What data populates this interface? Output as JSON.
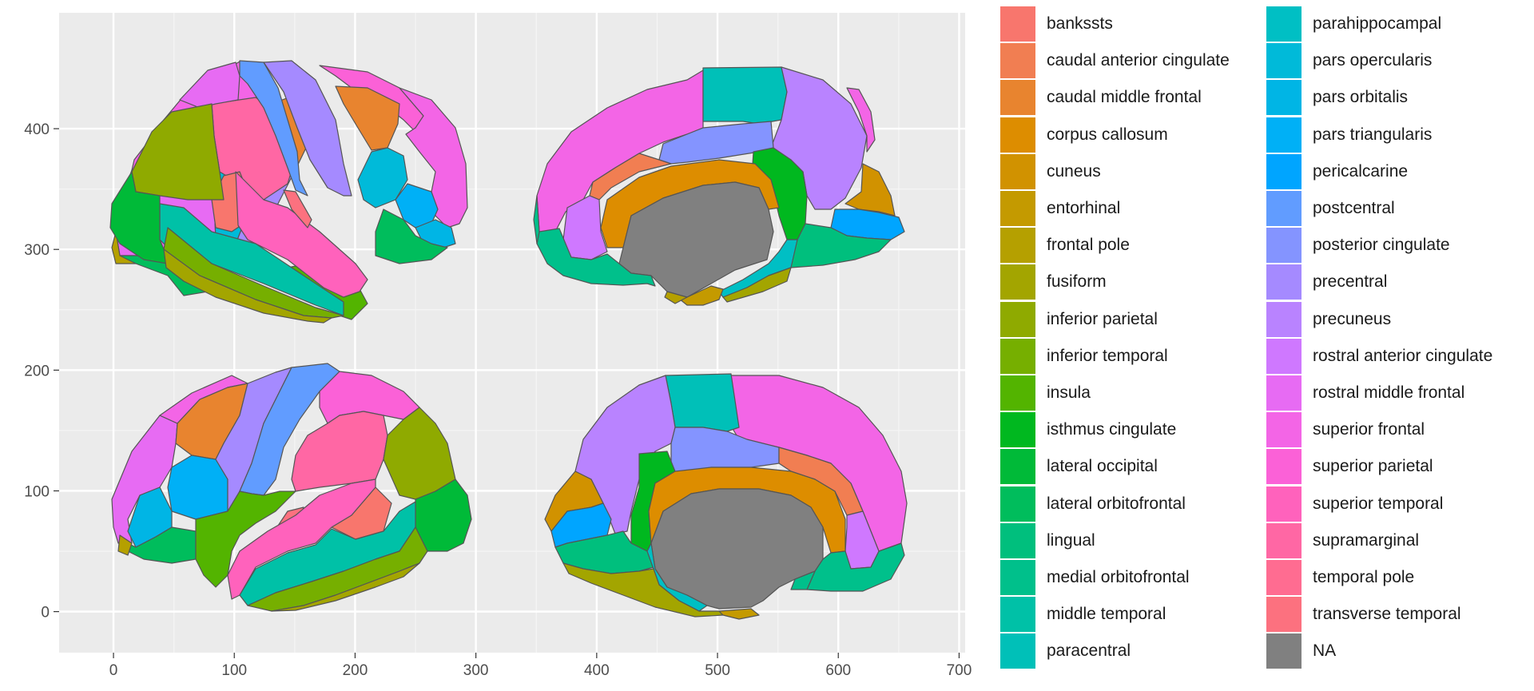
{
  "chart_data": {
    "type": "map",
    "title": "",
    "xlabel": "",
    "ylabel": "",
    "xlim": [
      -45,
      705
    ],
    "ylim": [
      -34,
      496
    ],
    "x_ticks": [
      0,
      100,
      200,
      300,
      400,
      500,
      600,
      700
    ],
    "x_tick_labels": [
      "0",
      "100",
      "200",
      "300",
      "400",
      "500",
      "600",
      "700"
    ],
    "y_ticks": [
      0,
      100,
      200,
      300,
      400
    ],
    "y_tick_labels": [
      "0",
      "100",
      "200",
      "300",
      "400"
    ],
    "grid": true,
    "legend_position": "right",
    "regions": [
      {
        "name": "bankssts",
        "color": "#F8766D"
      },
      {
        "name": "caudal anterior cingulate",
        "color": "#F17E52"
      },
      {
        "name": "caudal middle frontal",
        "color": "#E8842F"
      },
      {
        "name": "corpus callosum",
        "color": "#DD8D00"
      },
      {
        "name": "cuneus",
        "color": "#D19200"
      },
      {
        "name": "entorhinal",
        "color": "#C49A00"
      },
      {
        "name": "frontal pole",
        "color": "#B5A000"
      },
      {
        "name": "fusiform",
        "color": "#A3A500"
      },
      {
        "name": "inferior parietal",
        "color": "#8FAA00"
      },
      {
        "name": "inferior temporal",
        "color": "#76AF00"
      },
      {
        "name": "insula",
        "color": "#53B400"
      },
      {
        "name": "isthmus cingulate",
        "color": "#00B81F"
      },
      {
        "name": "lateral occipital",
        "color": "#00BA38"
      },
      {
        "name": "lateral orbitofrontal",
        "color": "#00BD5C"
      },
      {
        "name": "lingual",
        "color": "#00BF7D"
      },
      {
        "name": "medial orbitofrontal",
        "color": "#00C08B"
      },
      {
        "name": "middle temporal",
        "color": "#00C1A7"
      },
      {
        "name": "paracentral",
        "color": "#00C0B8"
      },
      {
        "name": "parahippocampal",
        "color": "#00BFC4"
      },
      {
        "name": "pars opercularis",
        "color": "#00BAD9"
      },
      {
        "name": "pars orbitalis",
        "color": "#00B5E5"
      },
      {
        "name": "pars triangularis",
        "color": "#00B0F6"
      },
      {
        "name": "pericalcarine",
        "color": "#00A5FF"
      },
      {
        "name": "postcentral",
        "color": "#619CFF"
      },
      {
        "name": "posterior cingulate",
        "color": "#8494FF"
      },
      {
        "name": "precentral",
        "color": "#A58AFF"
      },
      {
        "name": "precuneus",
        "color": "#B983FF"
      },
      {
        "name": "rostral anterior cingulate",
        "color": "#CF78FF"
      },
      {
        "name": "rostral middle frontal",
        "color": "#E76BF3"
      },
      {
        "name": "superior frontal",
        "color": "#F365E6"
      },
      {
        "name": "superior parietal",
        "color": "#FB61D7"
      },
      {
        "name": "superior temporal",
        "color": "#FF62BC"
      },
      {
        "name": "supramarginal",
        "color": "#FF67A4"
      },
      {
        "name": "temporal pole",
        "color": "#FF6C91"
      },
      {
        "name": "transverse temporal",
        "color": "#FC717F"
      },
      {
        "name": "NA",
        "color": "#808080"
      }
    ]
  }
}
